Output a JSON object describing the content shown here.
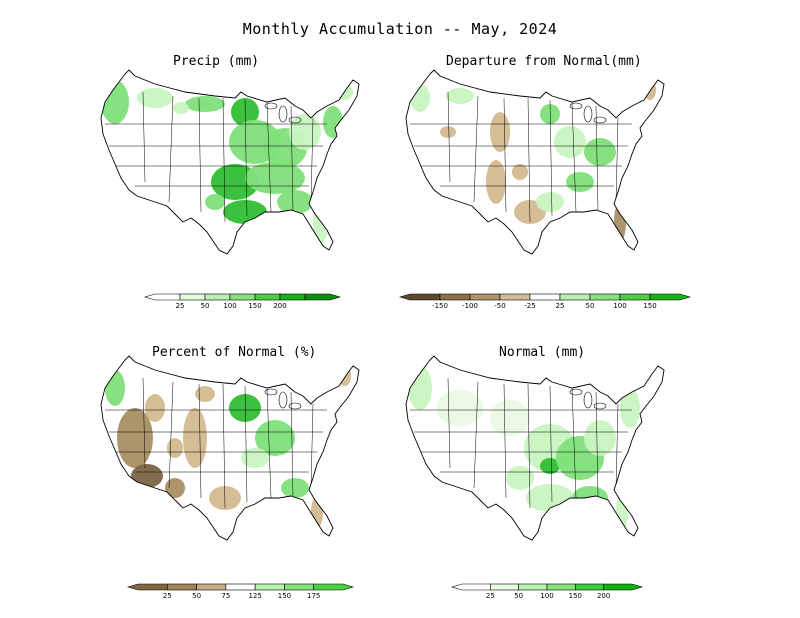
{
  "title": "Monthly Accumulation -- May, 2024",
  "panels": [
    {
      "title": "Precip (mm)",
      "colorbar": {
        "ticks": [
          "25",
          "50",
          "100",
          "150",
          "200"
        ],
        "colors": [
          "#ffffff",
          "#e8fbe3",
          "#b9f1b1",
          "#86e27c",
          "#4ccf47",
          "#16b316",
          "#0b8f0b"
        ]
      }
    },
    {
      "title": "Departure from Normal(mm)",
      "colorbar": {
        "ticks": [
          "-150",
          "-100",
          "-50",
          "-25",
          "25",
          "50",
          "100",
          "150"
        ],
        "colors": [
          "#5c4a2e",
          "#8a7148",
          "#b09467",
          "#d2bc98",
          "#ffffff",
          "#b9f1b1",
          "#86e27c",
          "#4ccf47",
          "#16b316"
        ]
      }
    },
    {
      "title": "Percent of Normal (%)",
      "colorbar": {
        "ticks": [
          "25",
          "50",
          "75",
          "125",
          "150",
          "175"
        ],
        "colors": [
          "#7e6844",
          "#a08559",
          "#c8ae89",
          "#ffffff",
          "#b9f1b1",
          "#86e27c",
          "#4ccf47"
        ]
      }
    },
    {
      "title": "Normal (mm)",
      "colorbar": {
        "ticks": [
          "25",
          "50",
          "100",
          "150",
          "200"
        ],
        "colors": [
          "#ffffff",
          "#e8fbe3",
          "#b9f1b1",
          "#86e27c",
          "#3ccc3c",
          "#10b010"
        ]
      }
    }
  ],
  "palette": {
    "green_light": "#c8f4c0",
    "green_mid": "#7fe07a",
    "green_dark": "#2fbf34",
    "brown_light": "#d3b98f",
    "brown_mid": "#a88f63",
    "brown_dark": "#7a6544"
  }
}
